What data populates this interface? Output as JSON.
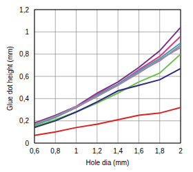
{
  "chart_data": {
    "type": "line",
    "x_label": "Hole dia (mm)",
    "y_label": "Glue dot height (mm)",
    "x": [
      0.6,
      0.8,
      1,
      1.2,
      1.4,
      1.6,
      1.8,
      2
    ],
    "xlim": [
      0.6,
      2
    ],
    "xticks": [
      {
        "value": 0.6,
        "label": "0,6"
      },
      {
        "value": 0.8,
        "label": "0,8"
      },
      1,
      {
        "value": 1.2,
        "label": "1,2"
      },
      {
        "value": 1.4,
        "label": "1,4"
      },
      {
        "value": 1.6,
        "label": "1,6"
      },
      {
        "value": 1.8,
        "label": "1,8"
      },
      2
    ],
    "ylim": [
      0,
      1.2
    ],
    "yticks": [
      0,
      {
        "value": 0.2,
        "label": "0,2"
      },
      {
        "value": 0.4,
        "label": "0,4"
      },
      {
        "value": 0.6,
        "label": "0,6"
      },
      {
        "value": 0.8,
        "label": "0,8"
      },
      1,
      {
        "value": 1.2,
        "label": "1,2"
      }
    ],
    "grid": true,
    "series": [
      {
        "color": "#7b2d8e",
        "values": [
          0.18,
          0.25,
          0.33,
          0.45,
          0.55,
          0.68,
          0.83,
          1.04
        ]
      },
      {
        "color": "#d63c8c",
        "values": [
          0.17,
          0.24,
          0.32,
          0.44,
          0.53,
          0.66,
          0.78,
          0.96
        ]
      },
      {
        "color": "#3aa6a8",
        "values": [
          0.16,
          0.23,
          0.32,
          0.43,
          0.53,
          0.65,
          0.76,
          0.9
        ]
      },
      {
        "color": "#a07cc0",
        "values": [
          0.17,
          0.24,
          0.33,
          0.42,
          0.52,
          0.64,
          0.74,
          0.88
        ]
      },
      {
        "color": "#9a8a9a",
        "values": [
          0.17,
          0.24,
          0.32,
          0.42,
          0.52,
          0.63,
          0.75,
          0.86
        ]
      },
      {
        "color": "#6cc04a",
        "values": [
          0.15,
          0.21,
          0.28,
          0.36,
          0.45,
          0.55,
          0.63,
          0.8
        ]
      },
      {
        "color": "#2a2a80",
        "values": [
          0.14,
          0.2,
          0.28,
          0.37,
          0.47,
          0.52,
          0.57,
          0.67
        ]
      },
      {
        "color": "#e02020",
        "values": [
          0.07,
          0.1,
          0.14,
          0.17,
          0.21,
          0.25,
          0.27,
          0.32
        ]
      }
    ]
  }
}
